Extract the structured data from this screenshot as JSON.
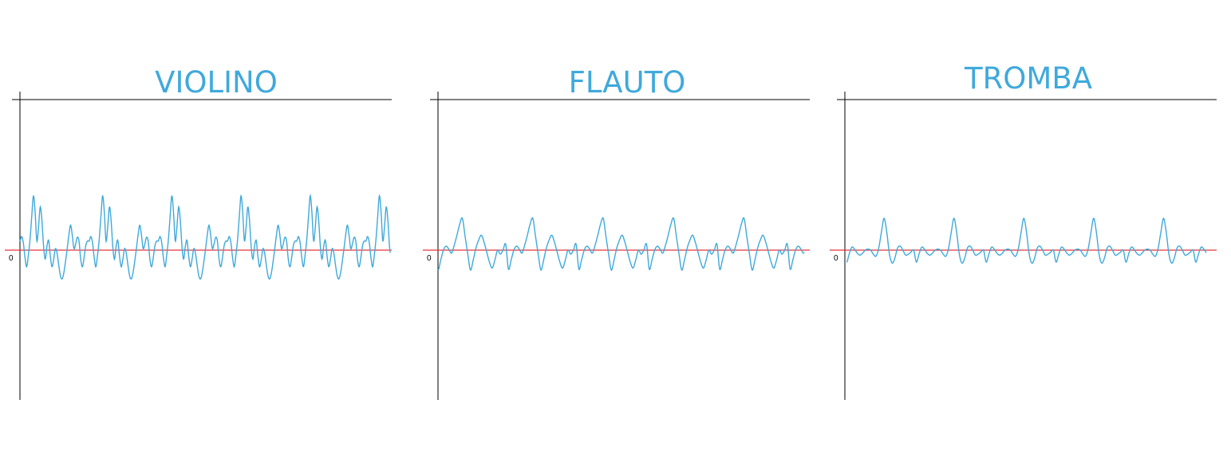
{
  "colors": {
    "background": "#ffffff",
    "axis": "#000000",
    "baseline": "#e8343b",
    "wave": "#3fa9dc",
    "title": "#3fa9dc"
  },
  "chart_data": [
    {
      "type": "line",
      "title": "VIOLINO",
      "zero_label": "0",
      "ylim": [
        -1,
        1
      ],
      "periods": 5.35,
      "series": [
        {
          "values": [
            0.12,
            0.18,
            0.1,
            -0.1,
            -0.22,
            -0.06,
            0.15,
            0.45,
            0.72,
            0.5,
            0.12,
            0.3,
            0.57,
            0.4,
            0.05,
            -0.12,
            0.05,
            0.13,
            -0.08,
            -0.22,
            -0.12,
            0.02,
            -0.04,
            -0.2,
            -0.34,
            -0.38,
            -0.3,
            -0.15,
            0.02,
            0.2,
            0.33,
            0.2,
            0.02,
            0.08,
            0.17,
            0.12,
            -0.12,
            -0.22,
            -0.1,
            0.06,
            0.12
          ]
        }
      ]
    },
    {
      "type": "line",
      "title": "FLAUTO",
      "zero_label": "0",
      "ylim": [
        -1,
        1
      ],
      "periods": 5.2,
      "series": [
        {
          "values": [
            -0.19,
            -0.1,
            0.0,
            0.04,
            0.01,
            -0.03,
            0.05,
            0.15,
            0.26,
            0.32,
            0.14,
            -0.04,
            -0.2,
            -0.1,
            0.02,
            0.1,
            0.15,
            0.08,
            -0.02,
            -0.12,
            -0.18,
            -0.1,
            0.0,
            -0.04,
            0.0,
            0.06
          ]
        }
      ]
    },
    {
      "type": "line",
      "title": "TROMBA",
      "zero_label": "0",
      "ylim": [
        -1,
        1
      ],
      "periods": 5.15,
      "series": [
        {
          "values": [
            -0.12,
            -0.04,
            0.03,
            0.01,
            -0.03,
            -0.05,
            -0.03,
            0.0,
            0.01,
            0.0,
            -0.04,
            -0.06,
            0.02,
            0.18,
            0.32,
            0.18,
            -0.04,
            -0.13,
            -0.08,
            0.02,
            0.04,
            0.0,
            -0.05,
            -0.04,
            -0.02,
            0.0
          ]
        }
      ]
    }
  ]
}
